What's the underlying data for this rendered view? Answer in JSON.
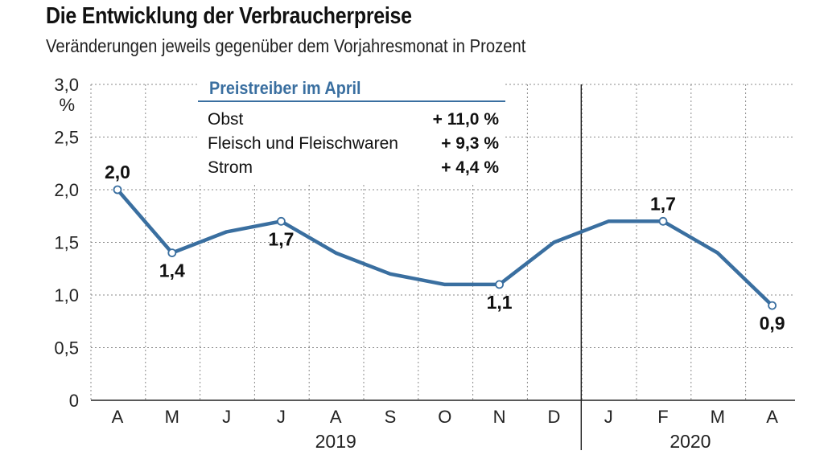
{
  "header": {
    "title": "Die Entwicklung der Verbraucherpreise",
    "subtitle": "Veränderungen jeweils gegenüber dem Vorjahresmonat in Prozent"
  },
  "infobox": {
    "title": "Preistreiber im April",
    "rows": [
      {
        "label": "Obst",
        "value": "+ 11,0 %"
      },
      {
        "label": "Fleisch und Fleischwaren",
        "value": "+ 9,3 %"
      },
      {
        "label": "Strom",
        "value": "+ 4,4 %"
      }
    ]
  },
  "colors": {
    "line": "#3a6fa0",
    "grid": "#888888",
    "axis": "#222222"
  },
  "chart_data": {
    "type": "line",
    "title": "Die Entwicklung der Verbraucherpreise",
    "subtitle": "Veränderungen jeweils gegenüber dem Vorjahresmonat in Prozent",
    "xlabel": "",
    "ylabel": "%",
    "ylim": [
      0,
      3.0
    ],
    "yticks": [
      "0",
      "0,5",
      "1,0",
      "1,5",
      "2,0",
      "2,5",
      "3,0"
    ],
    "categories": [
      "A",
      "M",
      "J",
      "J",
      "A",
      "S",
      "O",
      "N",
      "D",
      "J",
      "F",
      "M",
      "A"
    ],
    "years": [
      {
        "label": "2019",
        "from": 0,
        "to": 8
      },
      {
        "label": "2020",
        "from": 9,
        "to": 12
      }
    ],
    "series": [
      {
        "name": "Verbraucherpreise",
        "values": [
          2.0,
          1.4,
          1.6,
          1.7,
          1.4,
          1.2,
          1.1,
          1.1,
          1.5,
          1.7,
          1.7,
          1.4,
          0.9
        ]
      }
    ],
    "point_labels": [
      {
        "index": 0,
        "text": "2,0",
        "position": "above"
      },
      {
        "index": 1,
        "text": "1,4",
        "position": "below"
      },
      {
        "index": 3,
        "text": "1,7",
        "position": "below"
      },
      {
        "index": 7,
        "text": "1,1",
        "position": "below"
      },
      {
        "index": 10,
        "text": "1,7",
        "position": "above"
      },
      {
        "index": 12,
        "text": "0,9",
        "position": "below"
      }
    ],
    "grid": true,
    "legend": "none"
  }
}
